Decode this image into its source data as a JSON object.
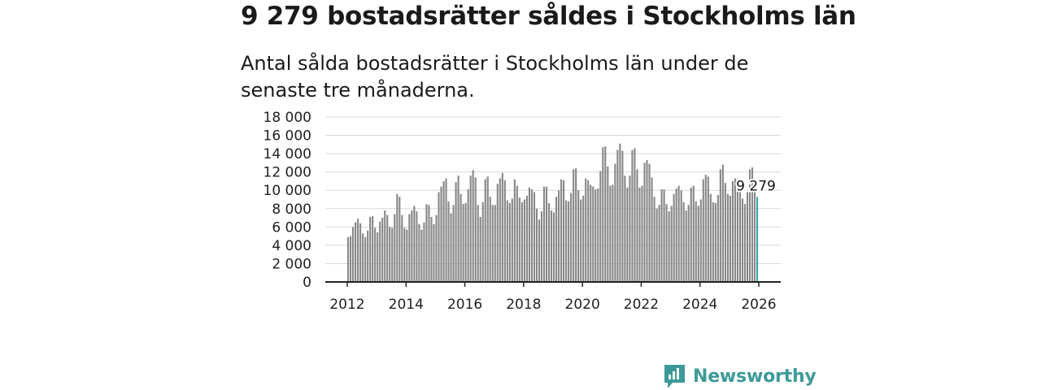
{
  "title": "9 279 bostadsrätter såldes i Stockholms län",
  "subtitle": "Antal sålda bostadsrätter i Stockholms län under de senaste tre månaderna.",
  "brand": {
    "name": "Newsworthy",
    "color": "#3d9a98"
  },
  "chart_data": {
    "type": "bar",
    "title": "9 279 bostadsrätter såldes i Stockholms län",
    "subtitle": "Antal sålda bostadsrätter i Stockholms län under de senaste tre månaderna.",
    "xlabel": "",
    "ylabel": "",
    "ylim": [
      0,
      18000
    ],
    "yticks": [
      0,
      2000,
      4000,
      6000,
      8000,
      10000,
      12000,
      14000,
      16000,
      18000
    ],
    "ytick_labels": [
      "0",
      "2 000",
      "4 000",
      "6 000",
      "8 000",
      "10 000",
      "12 000",
      "14 000",
      "16 000",
      "18 000"
    ],
    "xlim": [
      2012,
      2026.7
    ],
    "xticks": [
      2012,
      2014,
      2016,
      2018,
      2020,
      2022,
      2024,
      2026
    ],
    "xtick_labels": [
      "2012",
      "2014",
      "2016",
      "2018",
      "2020",
      "2022",
      "2024",
      "2026"
    ],
    "grid": true,
    "start": {
      "year": 2012,
      "month": 1
    },
    "frequency": "monthly",
    "bar_color": "#888888",
    "highlight_color": "#3aa8a0",
    "highlight_last": true,
    "last_value_label": "9 279",
    "values": [
      4900,
      5000,
      6000,
      6500,
      6900,
      6400,
      5300,
      4900,
      5600,
      7100,
      7200,
      5900,
      5400,
      6600,
      7000,
      7800,
      7300,
      6000,
      5900,
      7400,
      9600,
      9300,
      7300,
      5900,
      5700,
      7400,
      7800,
      8300,
      7700,
      6300,
      5700,
      6500,
      8500,
      8400,
      7100,
      6300,
      7300,
      9800,
      10400,
      11000,
      11300,
      8800,
      7500,
      8400,
      10900,
      11600,
      9600,
      8500,
      8600,
      10100,
      11600,
      12200,
      11400,
      8400,
      7100,
      8700,
      11200,
      11500,
      9300,
      8400,
      8400,
      10700,
      11300,
      11900,
      11100,
      8900,
      8600,
      9100,
      11200,
      10500,
      9200,
      8700,
      9000,
      9400,
      10300,
      10100,
      9800,
      8000,
      6800,
      7700,
      10400,
      10400,
      8600,
      7800,
      7600,
      9300,
      10000,
      11200,
      11100,
      8900,
      8800,
      9700,
      12300,
      12400,
      10000,
      9000,
      9400,
      11300,
      11100,
      10600,
      10400,
      10100,
      10200,
      12100,
      14700,
      14800,
      12600,
      10500,
      10600,
      12900,
      14400,
      15100,
      14300,
      11600,
      10300,
      11600,
      14400,
      14600,
      12300,
      10300,
      10500,
      13000,
      13300,
      12900,
      11400,
      9300,
      8000,
      8400,
      10100,
      10100,
      8500,
      7700,
      8300,
      9600,
      10200,
      10500,
      10000,
      8700,
      7800,
      8400,
      10300,
      10500,
      8800,
      8300,
      9000,
      11200,
      11700,
      11500,
      9600,
      8700,
      8600,
      9500,
      12300,
      12800,
      10800,
      9600,
      9400,
      11000,
      11300,
      11200,
      9800,
      9100,
      8500,
      9800,
      12300,
      12500,
      10000,
      9279
    ]
  }
}
